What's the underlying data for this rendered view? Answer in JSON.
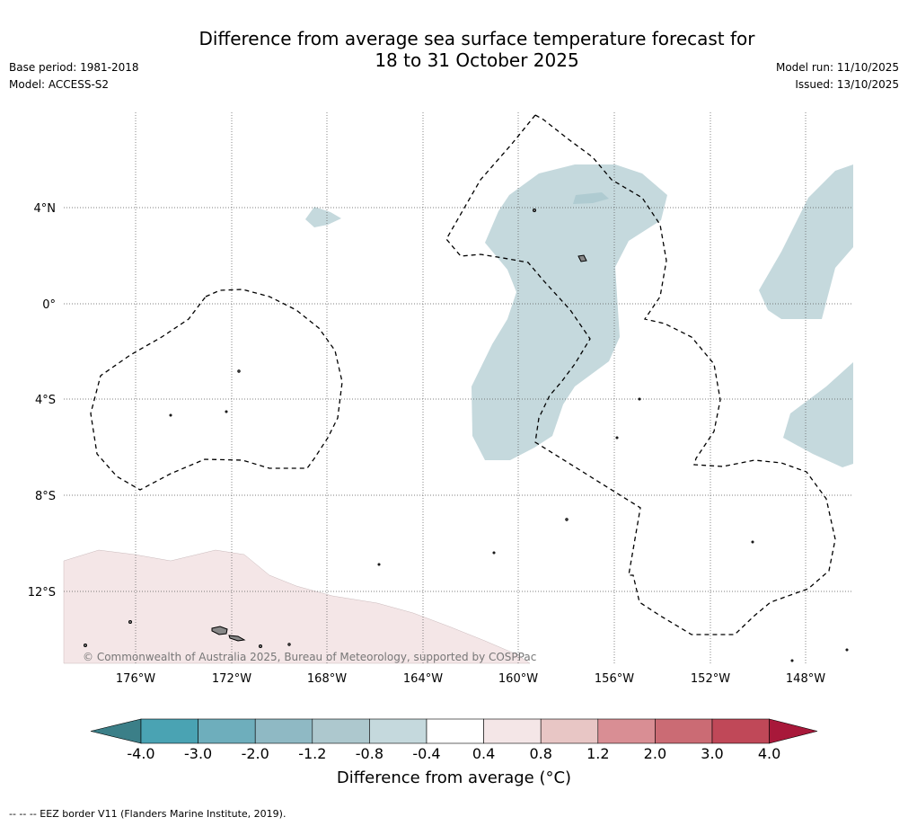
{
  "header": {
    "title_line1": "Difference from average sea surface temperature forecast for",
    "title_line2": "18 to 31 October 2025",
    "base_period": "Base period: 1981-2018",
    "model": "Model: ACCESS-S2",
    "model_run": "Model run: 11/10/2025",
    "issued": "Issued: 13/10/2025"
  },
  "map": {
    "longitude_labels": [
      "176°W",
      "172°W",
      "168°W",
      "164°W",
      "160°W",
      "156°W",
      "152°W",
      "148°W"
    ],
    "latitude_labels": [
      "4°N",
      "0°",
      "4°S",
      "8°S",
      "12°S"
    ],
    "copyright": "© Commonwealth of Australia 2025, Bureau of Meteorology, supported by COSPPac",
    "colors": {
      "cool_anomaly": "#c5d9dd",
      "cool_anomaly_stronger": "#afcbd1",
      "warm_anomaly": "#f4e6e7",
      "land": "#888888",
      "grid": "#555555",
      "eez_border": "#000000"
    }
  },
  "colorbar": {
    "ticks": [
      "-4.0",
      "-3.0",
      "-2.0",
      "-1.2",
      "-0.8",
      "-0.4",
      "0.4",
      "0.8",
      "1.2",
      "2.0",
      "3.0",
      "4.0"
    ],
    "colors": [
      "#3b7f88",
      "#4aa3b3",
      "#6eaebc",
      "#8fb9c4",
      "#adc8ce",
      "#c5d9dd",
      "#ffffff",
      "#f4e6e7",
      "#e8c6c5",
      "#d98e94",
      "#cb6b74",
      "#c04858",
      "#a8183a"
    ],
    "label": "Difference from average (°C)"
  },
  "footer": {
    "legend_note": "-- -- -- EEZ border V11 (Flanders Marine Institute, 2019)."
  }
}
